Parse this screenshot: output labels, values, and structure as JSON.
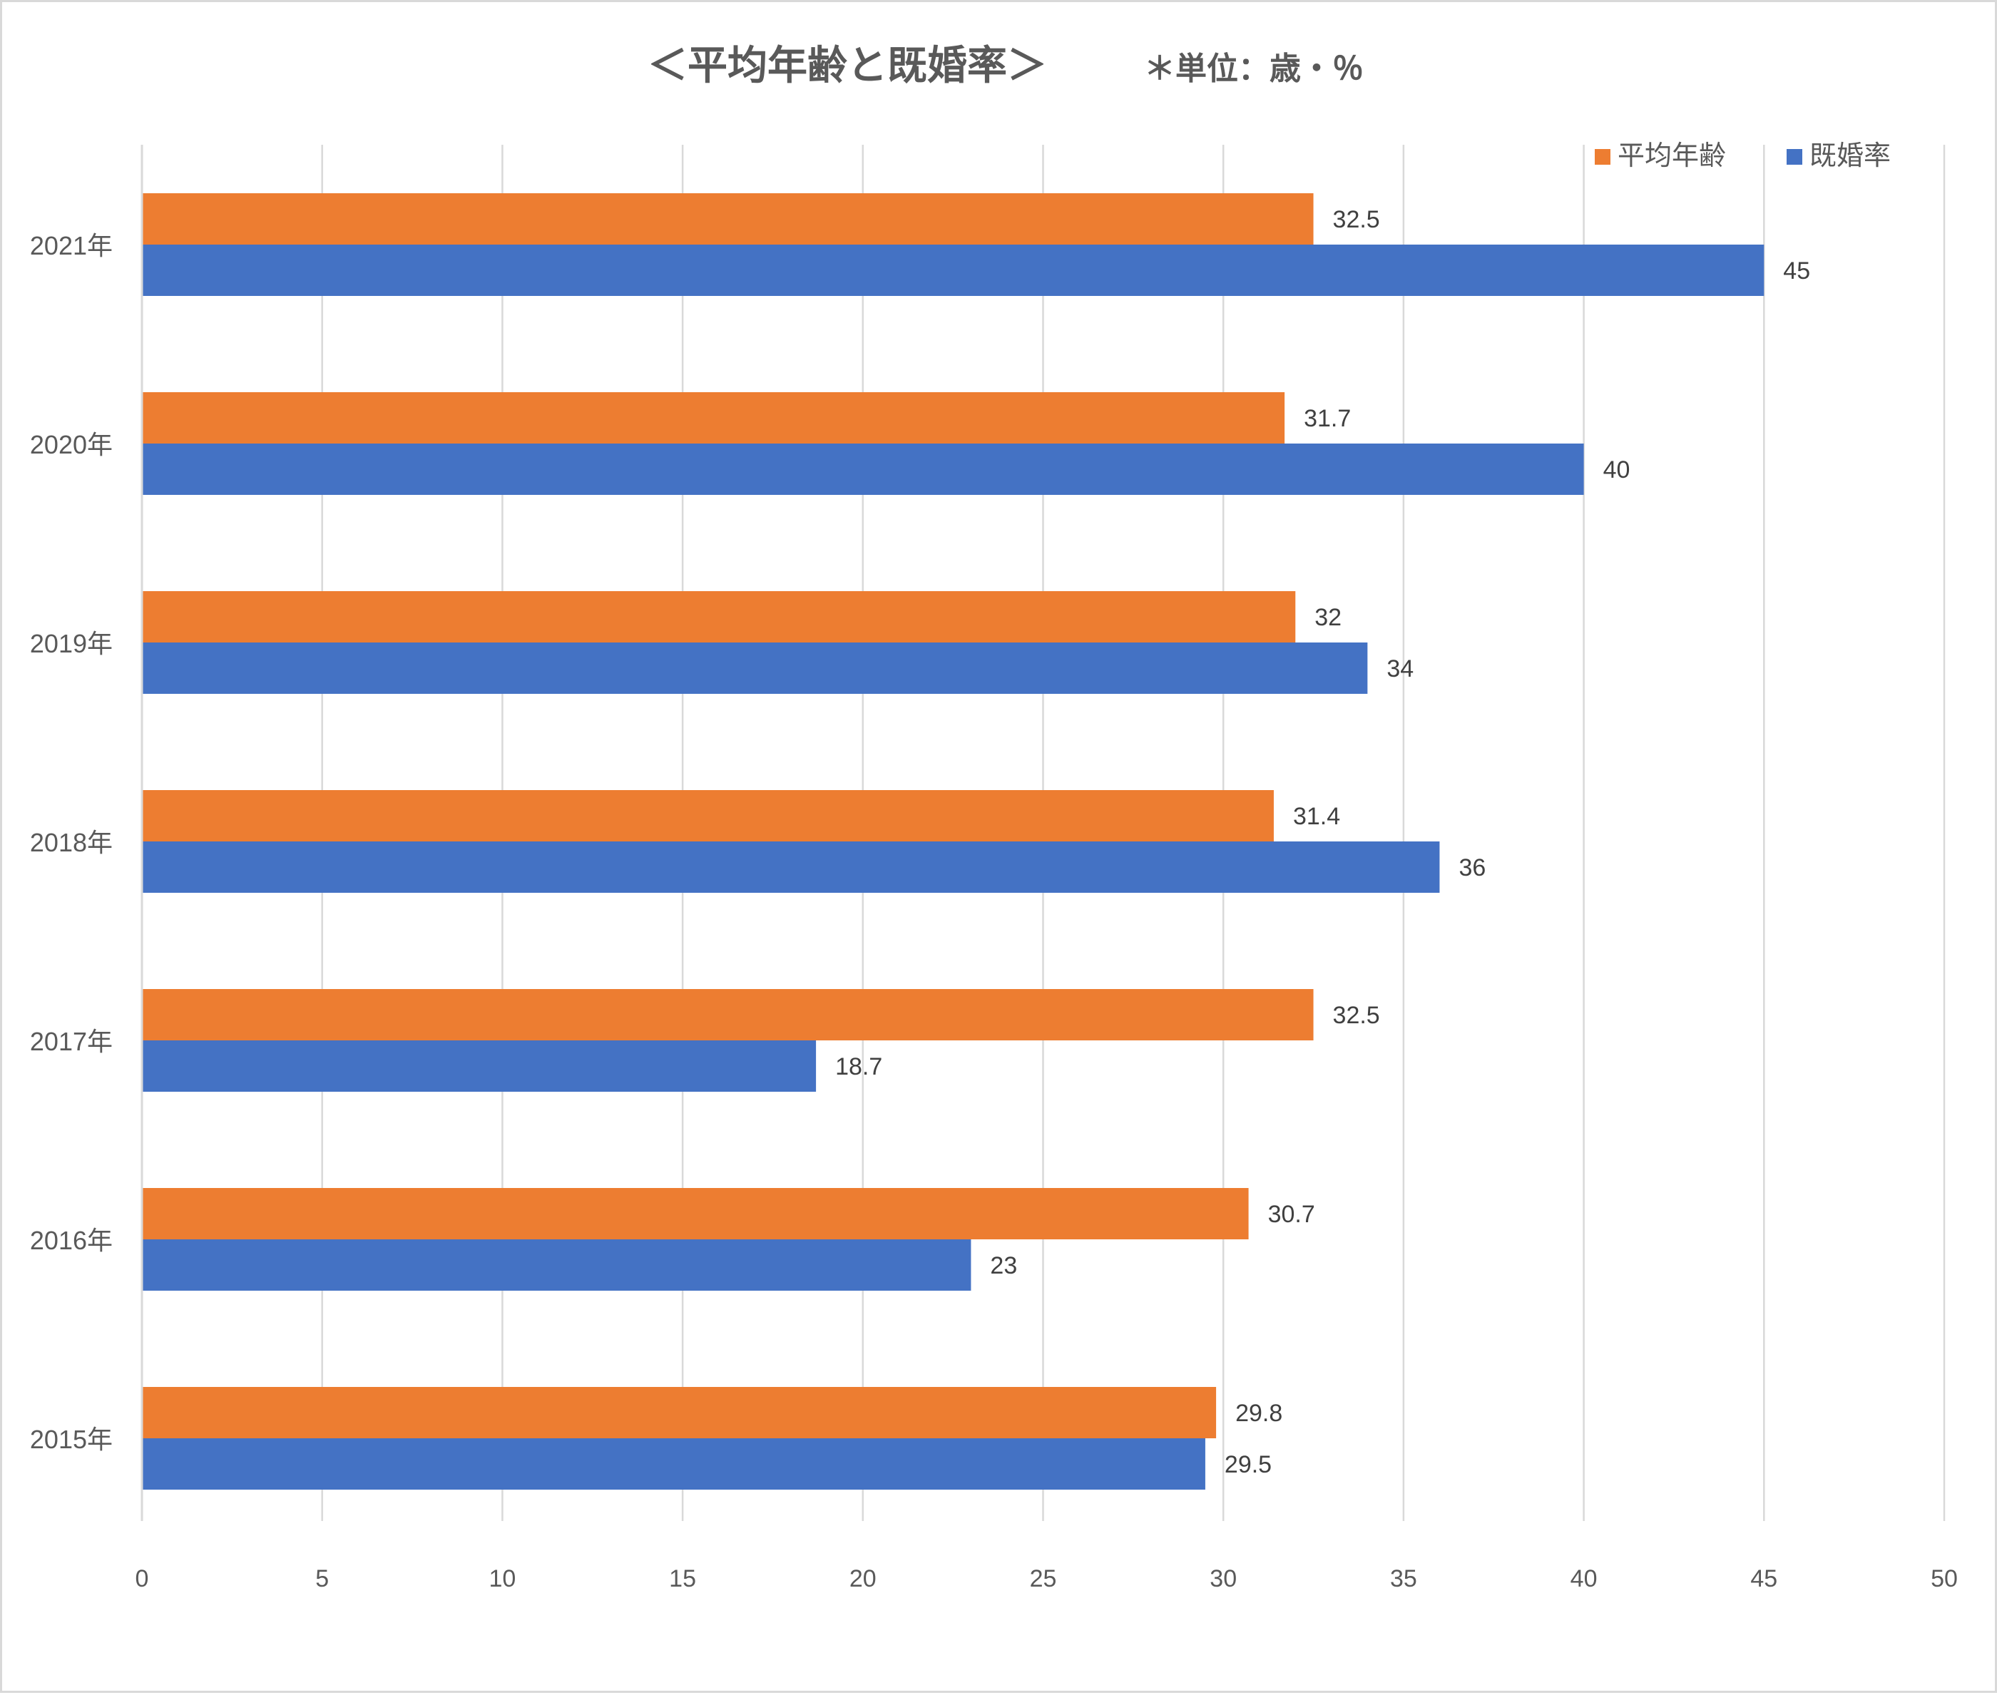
{
  "chart_data": {
    "type": "bar",
    "orientation": "horizontal",
    "title": "＜平均年齢と既婚率＞",
    "subtitle": "＊単位：歳・％",
    "categories": [
      "2021年",
      "2020年",
      "2019年",
      "2018年",
      "2017年",
      "2016年",
      "2015年"
    ],
    "series": [
      {
        "name": "平均年齢",
        "color": "#ED7D31",
        "values": [
          32.5,
          31.7,
          32,
          31.4,
          32.5,
          30.7,
          29.8
        ]
      },
      {
        "name": "既婚率",
        "color": "#4472C4",
        "values": [
          45,
          40,
          34,
          36,
          18.7,
          23,
          29.5
        ]
      }
    ],
    "xlim": [
      0,
      50
    ],
    "xticks": [
      0,
      5,
      10,
      15,
      20,
      25,
      30,
      35,
      40,
      45,
      50
    ],
    "grid": "vertical",
    "legend_position": "top-right",
    "xlabel": "",
    "ylabel": ""
  }
}
